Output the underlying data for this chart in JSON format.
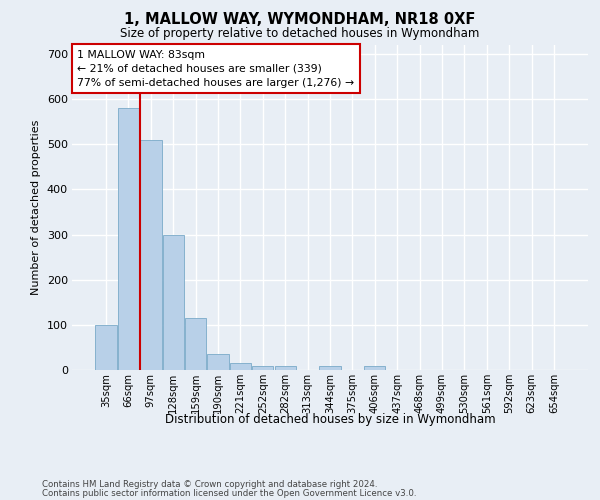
{
  "title1": "1, MALLOW WAY, WYMONDHAM, NR18 0XF",
  "title2": "Size of property relative to detached houses in Wymondham",
  "xlabel": "Distribution of detached houses by size in Wymondham",
  "ylabel": "Number of detached properties",
  "categories": [
    "35sqm",
    "66sqm",
    "97sqm",
    "128sqm",
    "159sqm",
    "190sqm",
    "221sqm",
    "252sqm",
    "282sqm",
    "313sqm",
    "344sqm",
    "375sqm",
    "406sqm",
    "437sqm",
    "468sqm",
    "499sqm",
    "530sqm",
    "561sqm",
    "592sqm",
    "623sqm",
    "654sqm"
  ],
  "values": [
    100,
    580,
    510,
    298,
    116,
    35,
    15,
    8,
    8,
    0,
    8,
    0,
    8,
    0,
    0,
    0,
    0,
    0,
    0,
    0,
    0
  ],
  "bar_color": "#b8d0e8",
  "bar_edge_color": "#7aaac8",
  "vline_x": 1.5,
  "vline_color": "#cc0000",
  "annotation_lines": [
    "1 MALLOW WAY: 83sqm",
    "← 21% of detached houses are smaller (339)",
    "77% of semi-detached houses are larger (1,276) →"
  ],
  "ylim": [
    0,
    720
  ],
  "yticks": [
    0,
    100,
    200,
    300,
    400,
    500,
    600,
    700
  ],
  "bg_color": "#e8eef5",
  "plot_bg_color": "#e8eef5",
  "grid_color": "#ffffff",
  "footer1": "Contains HM Land Registry data © Crown copyright and database right 2024.",
  "footer2": "Contains public sector information licensed under the Open Government Licence v3.0."
}
